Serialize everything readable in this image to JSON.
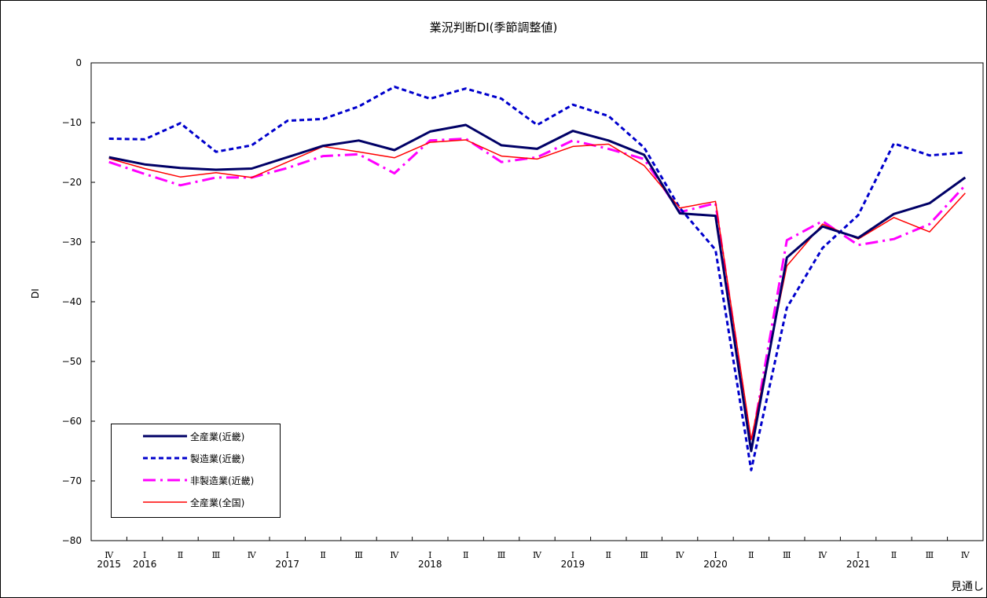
{
  "chart_data": {
    "type": "line",
    "title": "業況判断DI(季節調整値)",
    "ylabel": "DI",
    "ylim": [
      -80,
      0
    ],
    "yticks": [
      0,
      -10,
      -20,
      -30,
      -40,
      -50,
      -60,
      -70,
      -80
    ],
    "ytick_labels": [
      "0",
      "−10",
      "−20",
      "−30",
      "−40",
      "−50",
      "−60",
      "−70",
      "−80"
    ],
    "categories": [
      "Ⅳ",
      "Ⅰ",
      "Ⅱ",
      "Ⅲ",
      "Ⅳ",
      "Ⅰ",
      "Ⅱ",
      "Ⅲ",
      "Ⅳ",
      "Ⅰ",
      "Ⅱ",
      "Ⅲ",
      "Ⅳ",
      "Ⅰ",
      "Ⅱ",
      "Ⅲ",
      "Ⅳ",
      "Ⅰ",
      "Ⅱ",
      "Ⅲ",
      "Ⅳ",
      "Ⅰ",
      "Ⅱ",
      "Ⅲ",
      "Ⅳ"
    ],
    "year_labels": [
      {
        "index": 0,
        "label": "2015"
      },
      {
        "index": 1,
        "label": "2016"
      },
      {
        "index": 5,
        "label": "2017"
      },
      {
        "index": 9,
        "label": "2018"
      },
      {
        "index": 13,
        "label": "2019"
      },
      {
        "index": 17,
        "label": "2020"
      },
      {
        "index": 21,
        "label": "2021"
      }
    ],
    "corner_note": "見通し",
    "grid": false,
    "legend_position": "bottom-left",
    "series": [
      {
        "name": "全産業(近畿)",
        "color": "#000066",
        "style": "solid-thick",
        "values": [
          -15.8,
          -17.0,
          -17.6,
          -17.9,
          -17.7,
          -15.8,
          -13.9,
          -13.0,
          -14.6,
          -11.5,
          -10.4,
          -13.8,
          -14.4,
          -11.4,
          -13.0,
          -15.4,
          -25.2,
          -25.6,
          -65.0,
          -32.6,
          -27.4,
          -29.3,
          -25.3,
          -23.5,
          -19.2
        ]
      },
      {
        "name": "製造業(近畿)",
        "color": "#0000cc",
        "style": "dashed",
        "values": [
          -12.7,
          -12.8,
          -10.1,
          -14.9,
          -13.8,
          -9.7,
          -9.4,
          -7.3,
          -4.0,
          -6.0,
          -4.3,
          -6.0,
          -10.4,
          -7.0,
          -8.9,
          -14.2,
          -24.3,
          -31.3,
          -68.2,
          -41.0,
          -31.0,
          -25.5,
          -13.5,
          -15.5,
          -15.0
        ]
      },
      {
        "name": "非製造業(近畿)",
        "color": "#ff00ff",
        "style": "dashdot",
        "values": [
          -16.6,
          -18.6,
          -20.5,
          -19.2,
          -19.2,
          -17.6,
          -15.6,
          -15.3,
          -18.5,
          -13.0,
          -12.7,
          -16.6,
          -15.8,
          -13.0,
          -14.4,
          -16.1,
          -25.0,
          -23.5,
          -64.0,
          -29.7,
          -26.5,
          -30.5,
          -29.5,
          -27.0,
          -20.5
        ]
      },
      {
        "name": "全産業(全国)",
        "color": "#ff0000",
        "style": "solid-thin",
        "values": [
          -16.0,
          -17.7,
          -19.1,
          -18.4,
          -19.2,
          -16.6,
          -14.0,
          -14.9,
          -15.9,
          -13.3,
          -12.9,
          -15.6,
          -16.1,
          -14.0,
          -13.6,
          -17.2,
          -24.3,
          -23.2,
          -63.1,
          -34.0,
          -27.0,
          -29.5,
          -25.9,
          -28.3,
          -21.8
        ]
      }
    ]
  }
}
